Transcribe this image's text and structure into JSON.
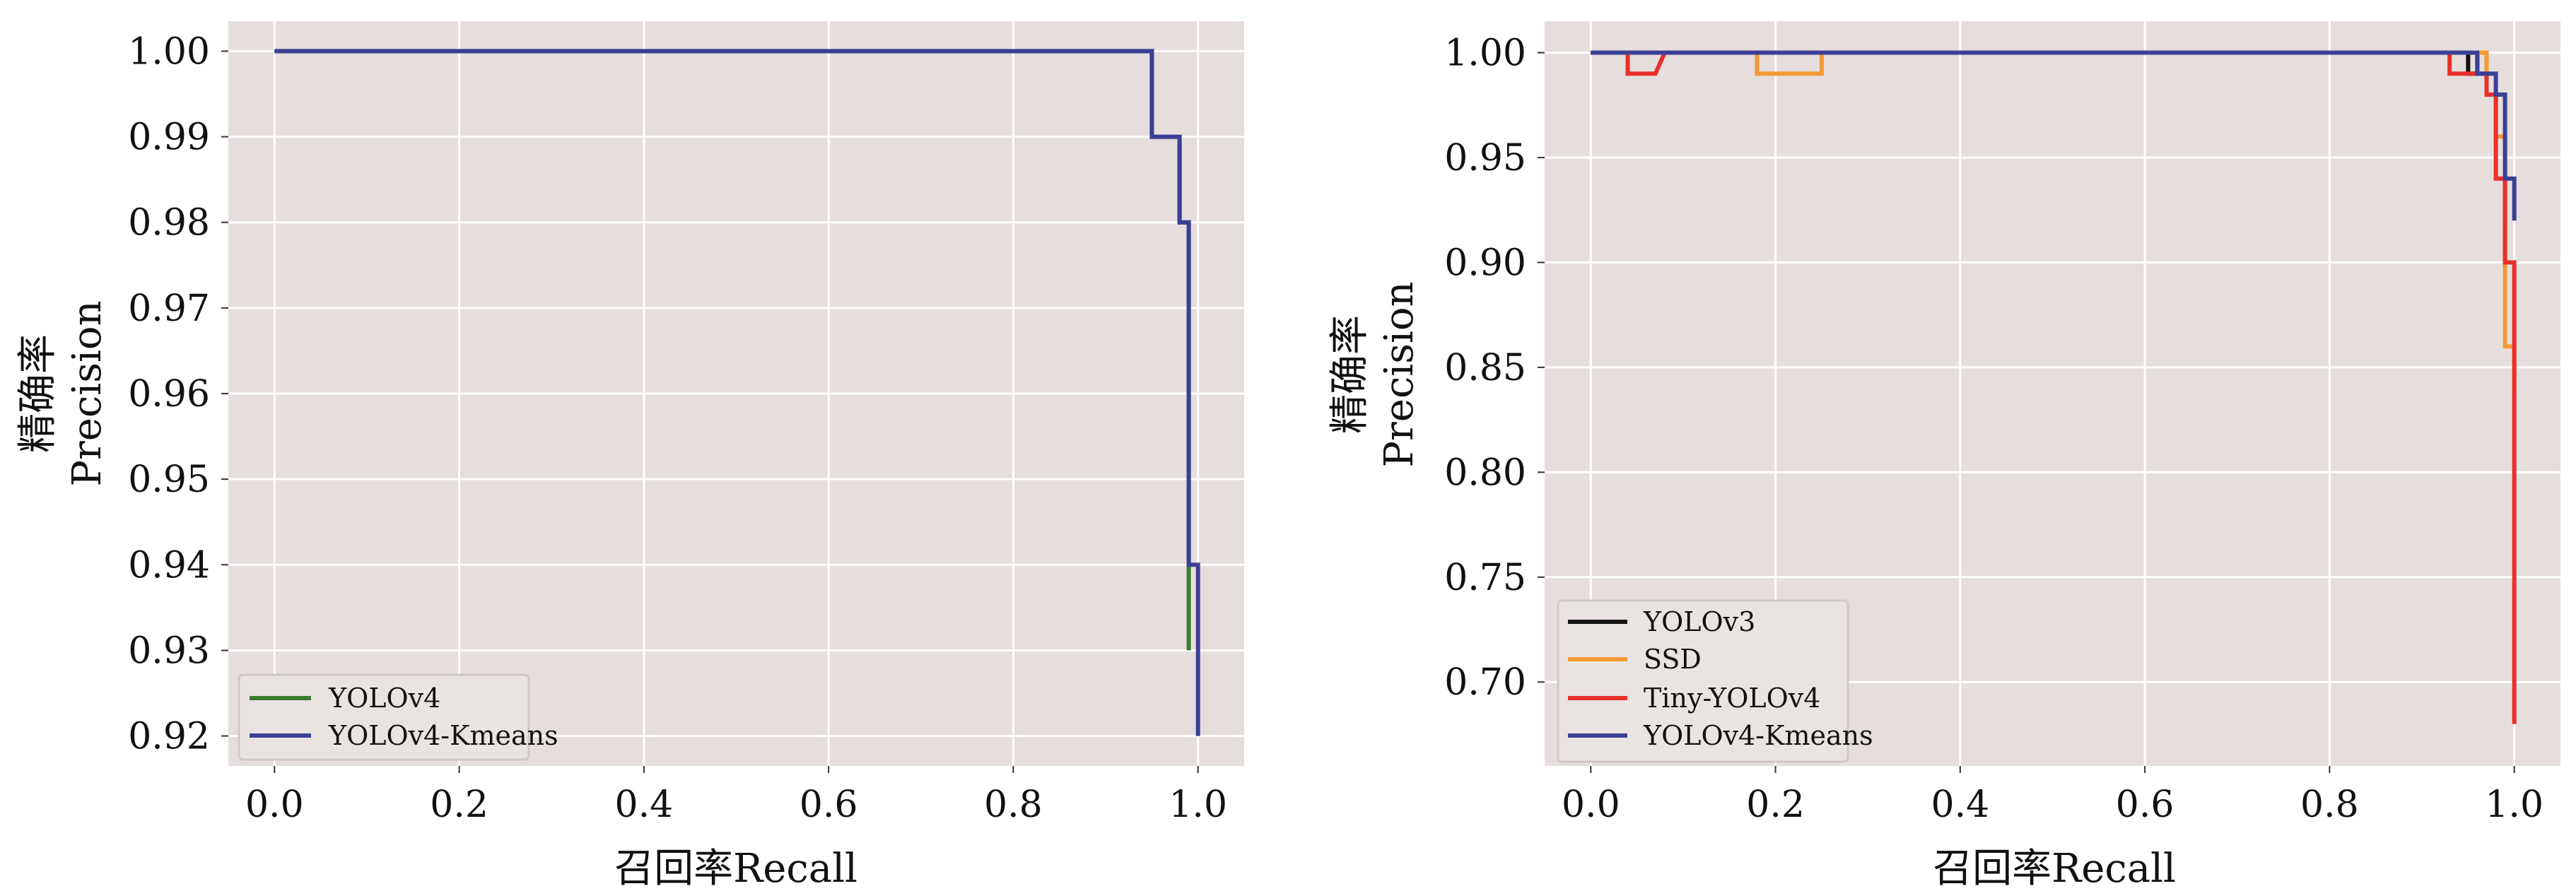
{
  "chart_data": [
    {
      "type": "line",
      "step": true,
      "xlabel": "召回率Recall",
      "ylabel_cn": "精确率",
      "ylabel_en": "Precision",
      "xlim": [
        -0.05,
        1.05
      ],
      "ylim": [
        0.9165,
        1.0035
      ],
      "xticks": [
        0.0,
        0.2,
        0.4,
        0.6,
        0.8,
        1.0
      ],
      "xtick_labels": [
        "0.0",
        "0.2",
        "0.4",
        "0.6",
        "0.8",
        "1.0"
      ],
      "yticks": [
        0.92,
        0.93,
        0.94,
        0.95,
        0.96,
        0.97,
        0.98,
        0.99,
        1.0
      ],
      "ytick_labels": [
        "0.92",
        "0.93",
        "0.94",
        "0.95",
        "0.96",
        "0.97",
        "0.98",
        "0.99",
        "1.00"
      ],
      "grid": true,
      "legend_position": "lower-left",
      "series": [
        {
          "name": "YOLOv4",
          "color": "#3a7a2e",
          "x": [
            0.0,
            0.95,
            0.95,
            0.98,
            0.98,
            0.99,
            0.99
          ],
          "y": [
            1.0,
            1.0,
            0.99,
            0.99,
            0.98,
            0.98,
            0.93
          ]
        },
        {
          "name": "YOLOv4-Kmeans",
          "color": "#3b3f96",
          "x": [
            0.0,
            0.95,
            0.95,
            0.98,
            0.98,
            0.99,
            0.99,
            1.0,
            1.0
          ],
          "y": [
            1.0,
            1.0,
            0.99,
            0.99,
            0.98,
            0.98,
            0.94,
            0.94,
            0.92
          ]
        }
      ]
    },
    {
      "type": "line",
      "step": true,
      "xlabel": "召回率Recall",
      "ylabel_cn": "精确率",
      "ylabel_en": "Precision",
      "xlim": [
        -0.05,
        1.05
      ],
      "ylim": [
        0.66,
        1.015
      ],
      "xticks": [
        0.0,
        0.2,
        0.4,
        0.6,
        0.8,
        1.0
      ],
      "xtick_labels": [
        "0.0",
        "0.2",
        "0.4",
        "0.6",
        "0.8",
        "1.0"
      ],
      "yticks": [
        0.7,
        0.75,
        0.8,
        0.85,
        0.9,
        0.95,
        1.0
      ],
      "ytick_labels": [
        "0.70",
        "0.75",
        "0.80",
        "0.85",
        "0.90",
        "0.95",
        "1.00"
      ],
      "grid": true,
      "legend_position": "lower-left",
      "series": [
        {
          "name": "YOLOv3",
          "color": "#111111",
          "x": [
            0.0,
            0.95,
            0.95,
            0.96,
            0.96
          ],
          "y": [
            1.0,
            1.0,
            0.99,
            0.99,
            1.0
          ]
        },
        {
          "name": "SSD",
          "color": "#f39a36",
          "x": [
            0.0,
            0.18,
            0.18,
            0.25,
            0.25,
            0.97,
            0.97,
            0.98,
            0.98,
            0.99,
            0.99,
            1.0,
            1.0
          ],
          "y": [
            1.0,
            1.0,
            0.99,
            0.99,
            1.0,
            1.0,
            0.98,
            0.98,
            0.96,
            0.96,
            0.86,
            0.86,
            0.84
          ]
        },
        {
          "name": "Tiny-YOLOv4",
          "color": "#e8302a",
          "x": [
            0.0,
            0.04,
            0.04,
            0.07,
            0.08,
            0.93,
            0.93,
            0.97,
            0.97,
            0.98,
            0.98,
            0.99,
            0.99,
            1.0,
            1.0
          ],
          "y": [
            1.0,
            1.0,
            0.99,
            0.99,
            1.0,
            1.0,
            0.99,
            0.99,
            0.98,
            0.98,
            0.94,
            0.94,
            0.9,
            0.9,
            0.68
          ]
        },
        {
          "name": "YOLOv4-Kmeans",
          "color": "#3b3f96",
          "x": [
            0.0,
            0.96,
            0.96,
            0.98,
            0.98,
            0.99,
            0.99,
            1.0,
            1.0
          ],
          "y": [
            1.0,
            1.0,
            0.99,
            0.99,
            0.98,
            0.98,
            0.94,
            0.94,
            0.92
          ]
        }
      ]
    }
  ]
}
